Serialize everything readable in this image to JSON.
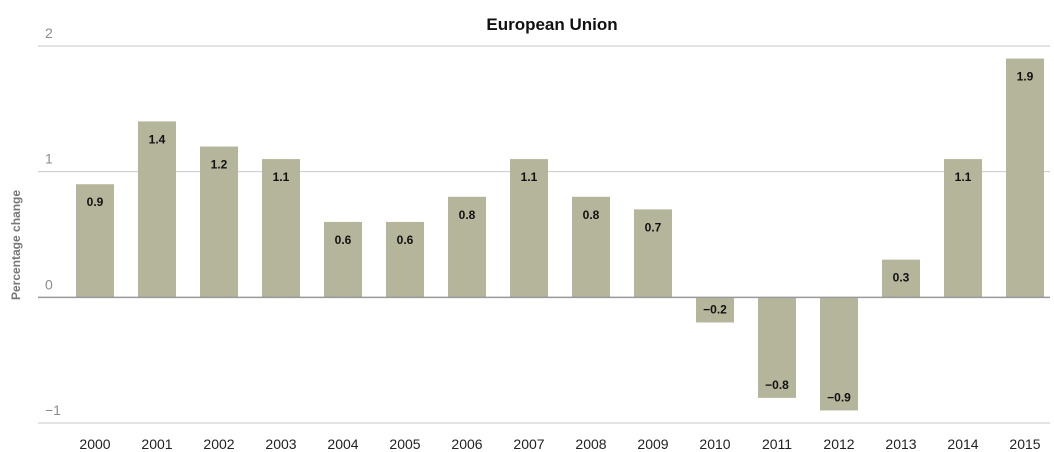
{
  "chart_data": {
    "type": "bar",
    "title": "European Union",
    "ylabel": "Percentage change",
    "xlabel": "",
    "categories": [
      "2000",
      "2001",
      "2002",
      "2003",
      "2004",
      "2005",
      "2006",
      "2007",
      "2008",
      "2009",
      "2010",
      "2011",
      "2012",
      "2013",
      "2014",
      "2015"
    ],
    "values": [
      0.9,
      1.4,
      1.2,
      1.1,
      0.6,
      0.6,
      0.8,
      1.1,
      0.8,
      0.7,
      -0.2,
      -0.8,
      -0.9,
      0.3,
      1.1,
      1.9
    ],
    "labels": [
      "0.9",
      "1.4",
      "1.2",
      "1.1",
      "0.6",
      "0.6",
      "0.8",
      "1.1",
      "0.8",
      "0.7",
      "−0.2",
      "−0.8",
      "−0.9",
      "0.3",
      "1.1",
      "1.9"
    ],
    "yticks": [
      2,
      1,
      0,
      -1
    ],
    "ytick_labels": [
      "2",
      "1",
      "0",
      "−1"
    ],
    "ylim": [
      -1,
      2
    ],
    "grid": true,
    "bar_color": "#b5b59b",
    "grid_color": "#c9c9c9",
    "zero_line_color": "#9a9a9a"
  }
}
